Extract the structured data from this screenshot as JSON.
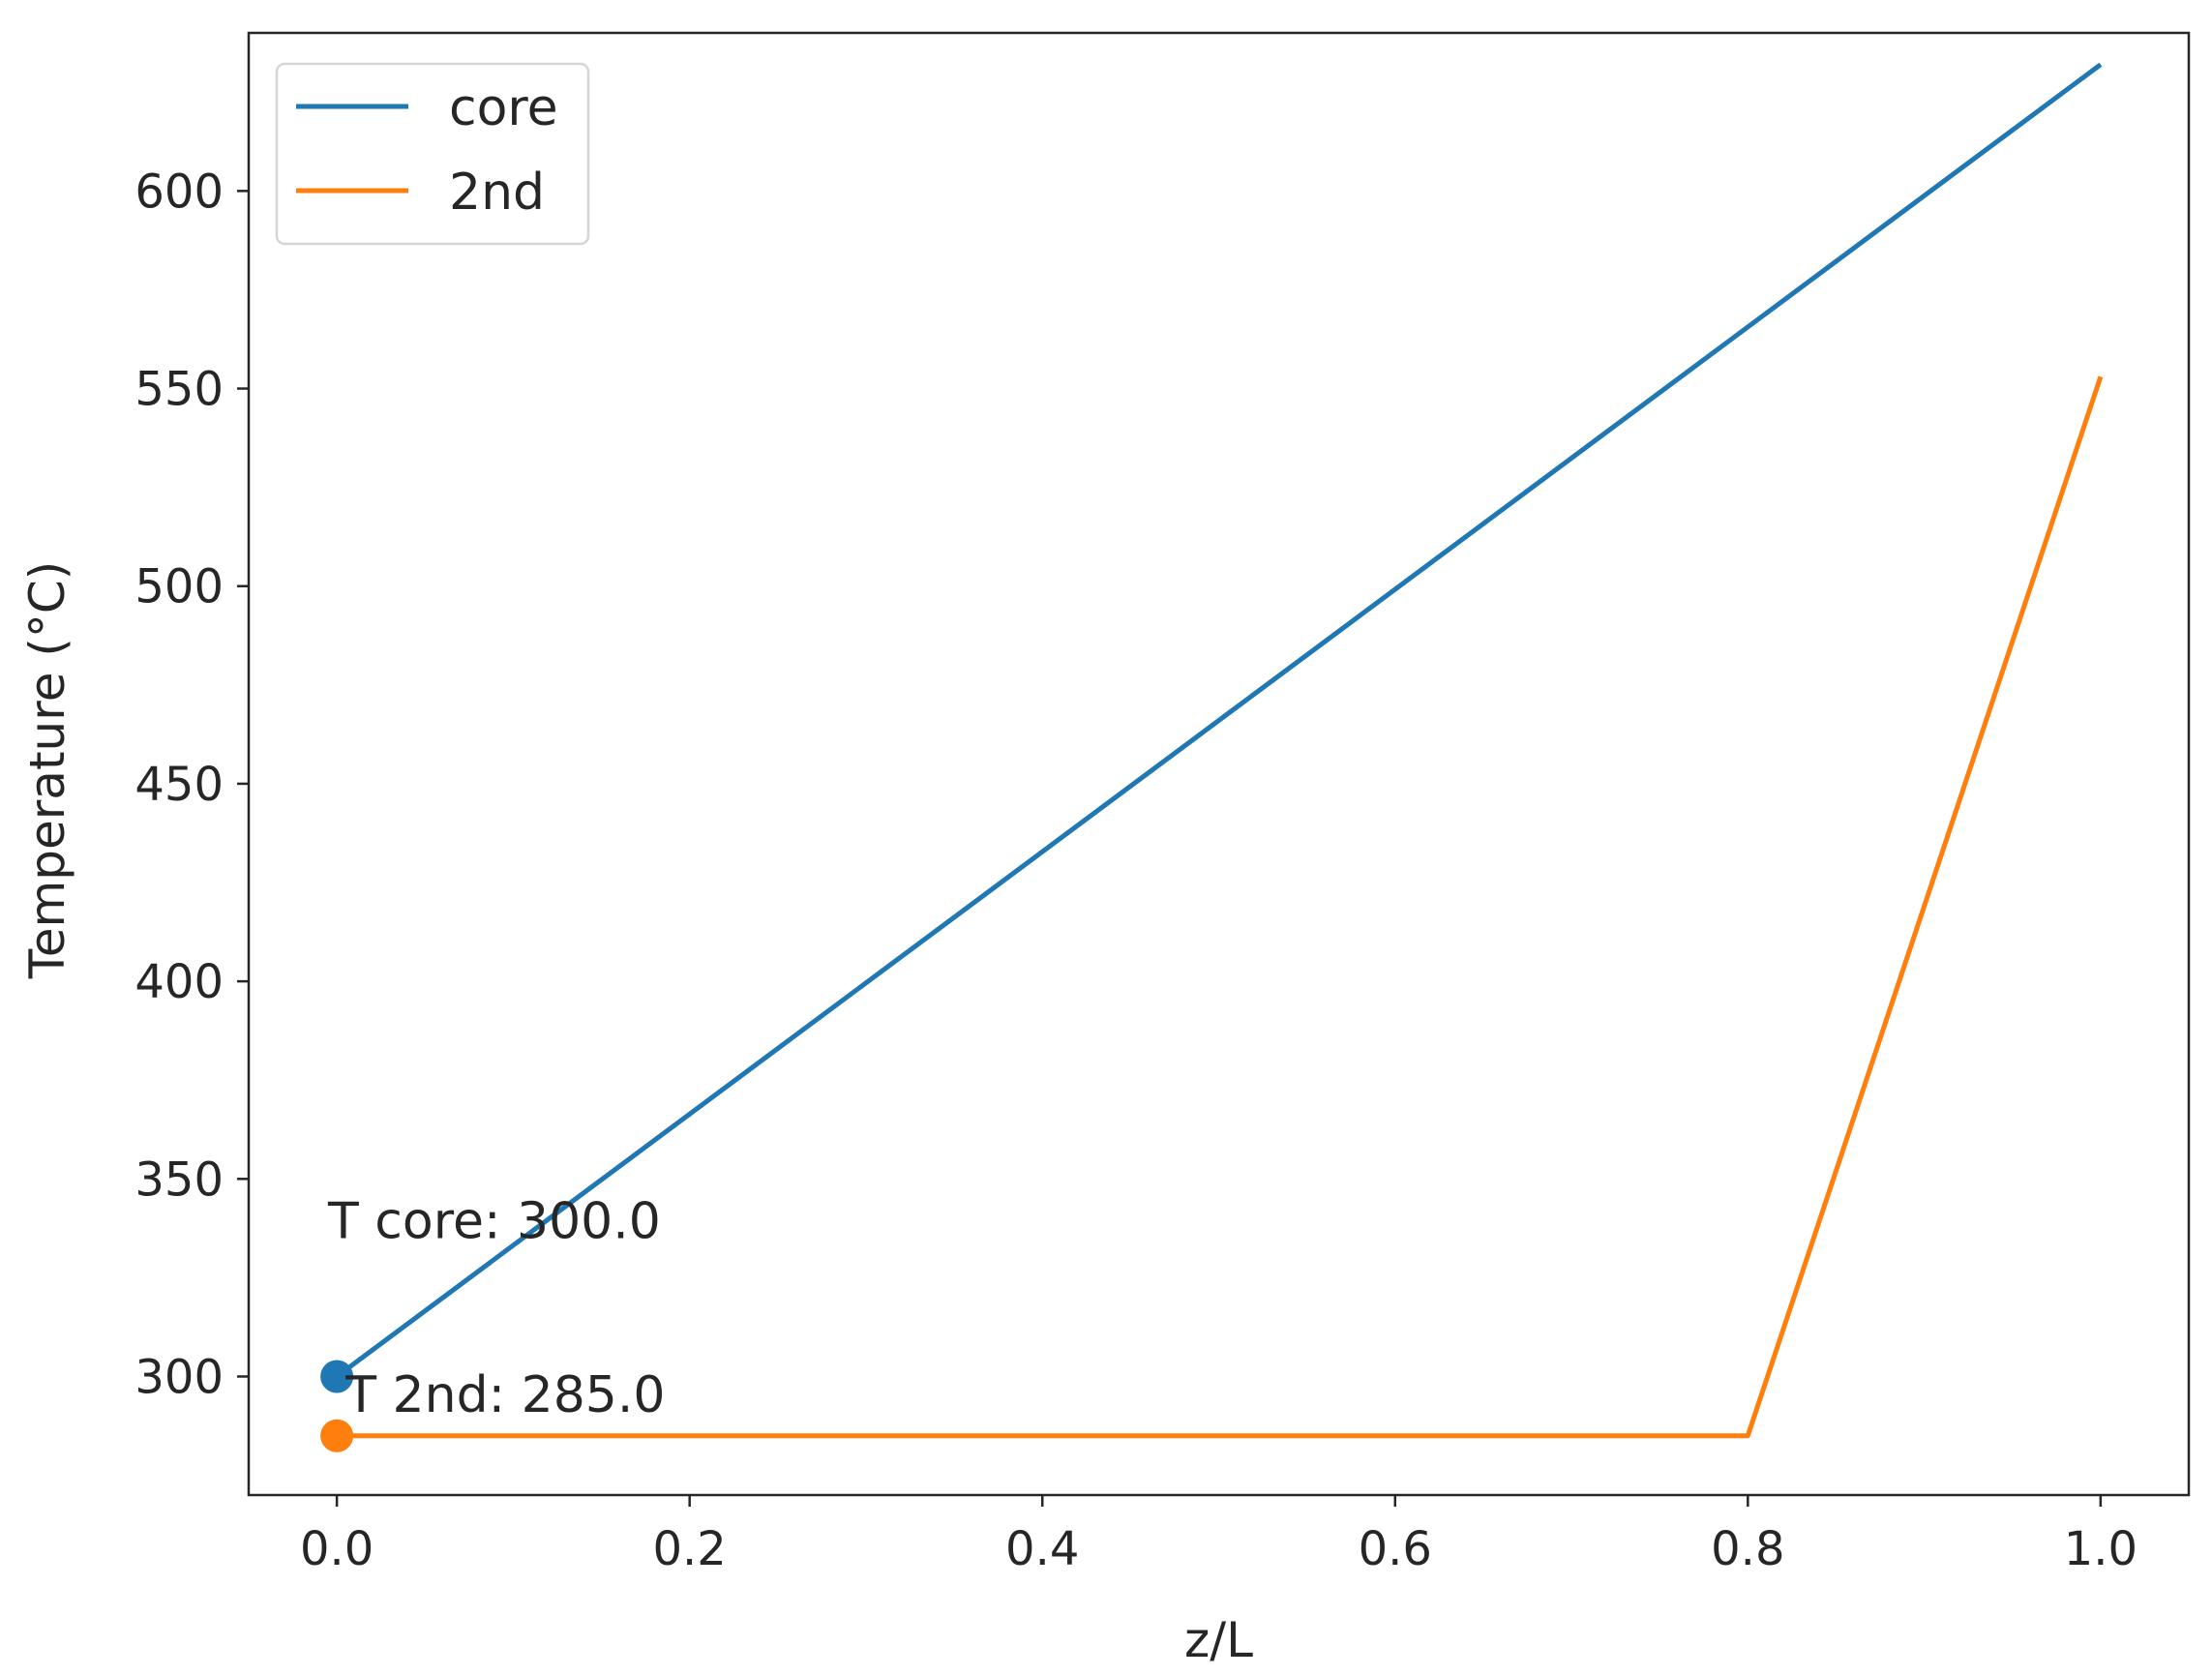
{
  "chart_data": {
    "type": "line",
    "title": "",
    "xlabel": "z/L",
    "ylabel": "Temperature (°C)",
    "xlim": [
      -0.05,
      1.05
    ],
    "ylim": [
      270,
      640
    ],
    "xticks": [
      0.0,
      0.2,
      0.4,
      0.6,
      0.8,
      1.0
    ],
    "xtick_labels": [
      "0.0",
      "0.2",
      "0.4",
      "0.6",
      "0.8",
      "1.0"
    ],
    "yticks": [
      300,
      350,
      400,
      450,
      500,
      550,
      600
    ],
    "ytick_labels": [
      "300",
      "350",
      "400",
      "450",
      "500",
      "550",
      "600"
    ],
    "grid": false,
    "legend_position": "top-left",
    "series": [
      {
        "name": "core",
        "color": "#1f77b4",
        "x": [
          0.0,
          1.0
        ],
        "y": [
          300,
          632
        ]
      },
      {
        "name": "2nd",
        "color": "#ff7f0e",
        "x": [
          0.0,
          0.8,
          1.0
        ],
        "y": [
          285,
          285,
          553
        ]
      }
    ],
    "markers": [
      {
        "series": "core",
        "x": 0.0,
        "y": 300,
        "color": "#1f77b4"
      },
      {
        "series": "2nd",
        "x": 0.0,
        "y": 285,
        "color": "#ff7f0e"
      }
    ],
    "annotations": [
      {
        "text": "T core: 300.0",
        "x": -0.005,
        "y": 335
      },
      {
        "text": "T 2nd: 285.0",
        "x": 0.005,
        "y": 291
      }
    ]
  }
}
